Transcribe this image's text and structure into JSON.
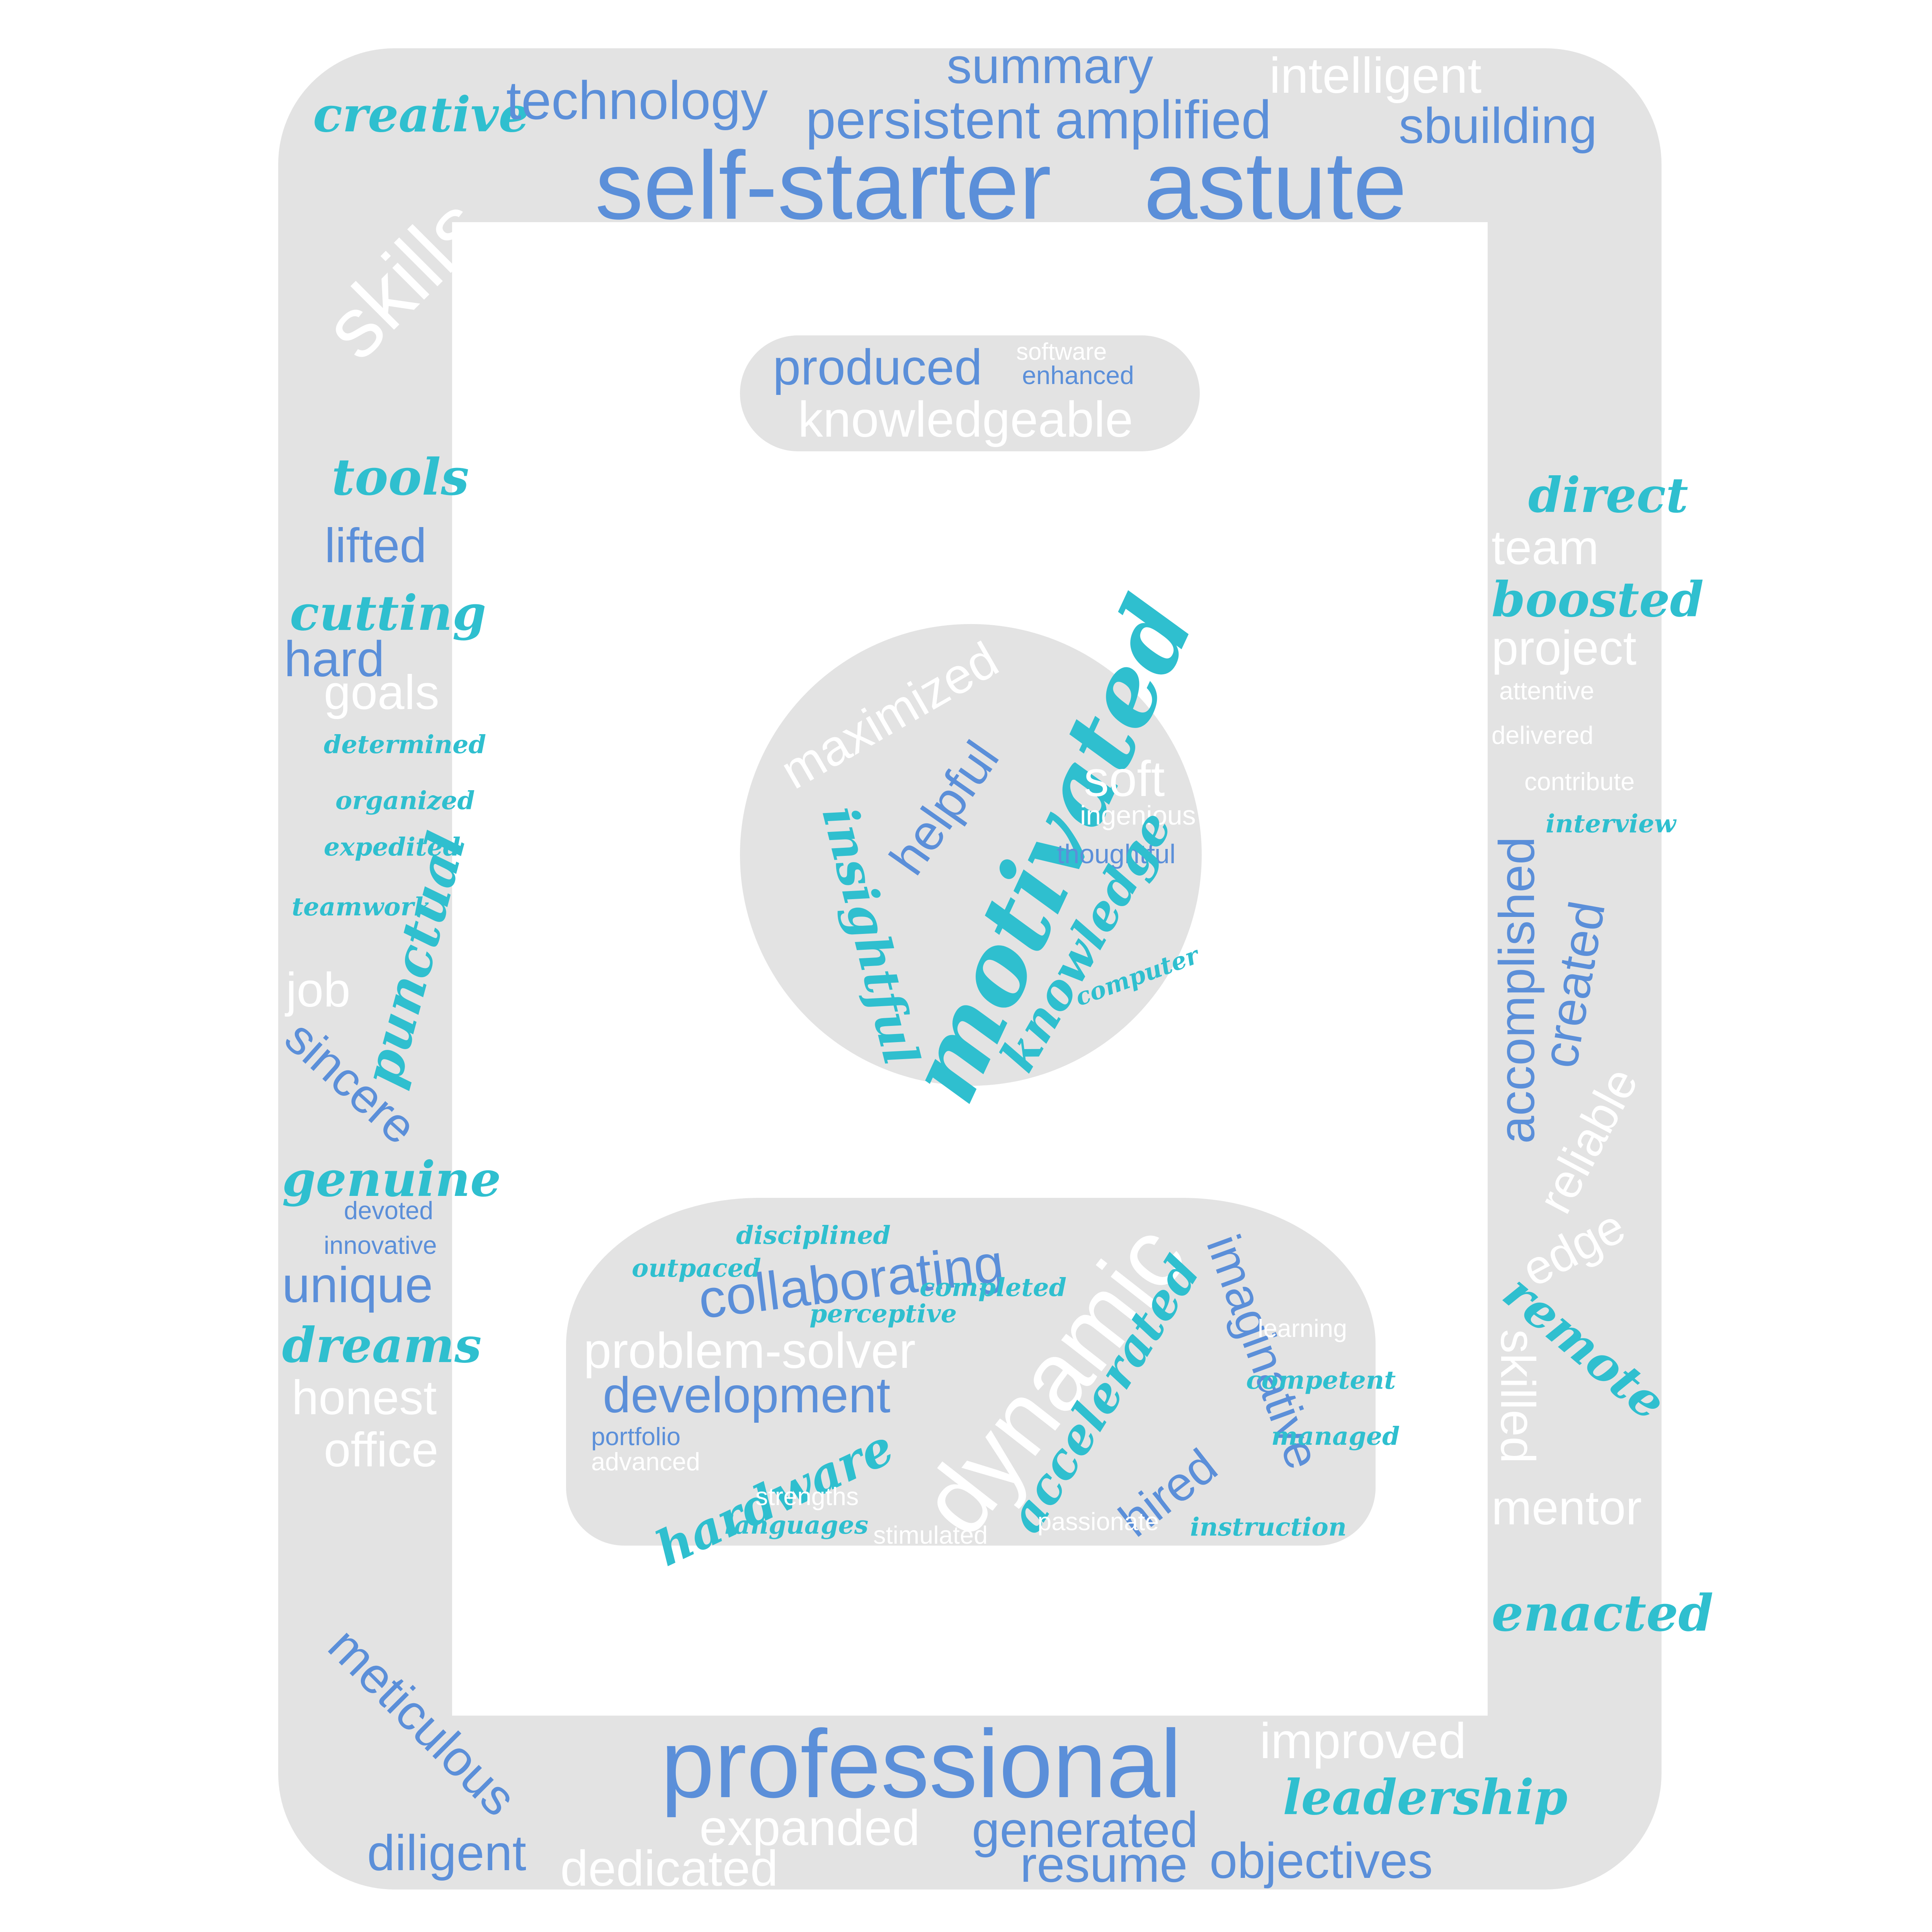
{
  "colors": {
    "blue": "#5b8fd9",
    "teal": "#2fbfcf",
    "white": "#ffffff",
    "shape_gray": "#e3e3e3",
    "background": "#ffffff"
  },
  "words": [
    {
      "id": "w1",
      "text": "creative",
      "color": "teal",
      "style": "script"
    },
    {
      "id": "w2",
      "text": "technology",
      "color": "blue",
      "style": "sans"
    },
    {
      "id": "w3",
      "text": "summary",
      "color": "blue",
      "style": "sans"
    },
    {
      "id": "w4",
      "text": "persistent",
      "color": "blue",
      "style": "sans"
    },
    {
      "id": "w5",
      "text": "amplified",
      "color": "blue",
      "style": "sans"
    },
    {
      "id": "w6",
      "text": "intelligent",
      "color": "white",
      "style": "sans"
    },
    {
      "id": "w7",
      "text": "sbuilding",
      "color": "blue",
      "style": "sans"
    },
    {
      "id": "w8",
      "text": "self-starter",
      "color": "blue",
      "style": "sans"
    },
    {
      "id": "w9",
      "text": "astute",
      "color": "blue",
      "style": "sans"
    },
    {
      "id": "w10",
      "text": "skills",
      "color": "white",
      "style": "sans"
    },
    {
      "id": "w11",
      "text": "produced",
      "color": "blue",
      "style": "sans"
    },
    {
      "id": "w12",
      "text": "software",
      "color": "white",
      "style": "sans"
    },
    {
      "id": "w13",
      "text": "enhanced",
      "color": "blue",
      "style": "sans"
    },
    {
      "id": "w14",
      "text": "knowledgeable",
      "color": "white",
      "style": "sans"
    },
    {
      "id": "w15",
      "text": "tools",
      "color": "teal",
      "style": "script"
    },
    {
      "id": "w16",
      "text": "lifted",
      "color": "blue",
      "style": "sans"
    },
    {
      "id": "w17",
      "text": "cutting",
      "color": "teal",
      "style": "script"
    },
    {
      "id": "w18",
      "text": "hard",
      "color": "blue",
      "style": "sans"
    },
    {
      "id": "w19",
      "text": "goals",
      "color": "white",
      "style": "sans"
    },
    {
      "id": "w20",
      "text": "determined",
      "color": "teal",
      "style": "script"
    },
    {
      "id": "w21",
      "text": "organized",
      "color": "teal",
      "style": "script"
    },
    {
      "id": "w22",
      "text": "expedited",
      "color": "teal",
      "style": "script"
    },
    {
      "id": "w23",
      "text": "teamwork",
      "color": "teal",
      "style": "script"
    },
    {
      "id": "w24",
      "text": "punctual",
      "color": "teal",
      "style": "script"
    },
    {
      "id": "w25",
      "text": "job",
      "color": "white",
      "style": "sans"
    },
    {
      "id": "w26",
      "text": "sincere",
      "color": "blue",
      "style": "sans"
    },
    {
      "id": "w27",
      "text": "genuine",
      "color": "teal",
      "style": "script"
    },
    {
      "id": "w28",
      "text": "devoted",
      "color": "blue",
      "style": "sans"
    },
    {
      "id": "w29",
      "text": "innovative",
      "color": "blue",
      "style": "sans"
    },
    {
      "id": "w30",
      "text": "unique",
      "color": "blue",
      "style": "sans"
    },
    {
      "id": "w31",
      "text": "dreams",
      "color": "teal",
      "style": "script"
    },
    {
      "id": "w32",
      "text": "honest",
      "color": "white",
      "style": "sans"
    },
    {
      "id": "w33",
      "text": "office",
      "color": "white",
      "style": "sans"
    },
    {
      "id": "w34",
      "text": "direct",
      "color": "teal",
      "style": "script"
    },
    {
      "id": "w35",
      "text": "team",
      "color": "white",
      "style": "sans"
    },
    {
      "id": "w36",
      "text": "boosted",
      "color": "teal",
      "style": "script"
    },
    {
      "id": "w37",
      "text": "project",
      "color": "white",
      "style": "sans"
    },
    {
      "id": "w38",
      "text": "attentive",
      "color": "white",
      "style": "sans"
    },
    {
      "id": "w39",
      "text": "delivered",
      "color": "white",
      "style": "sans"
    },
    {
      "id": "w40",
      "text": "contribute",
      "color": "white",
      "style": "sans"
    },
    {
      "id": "w41",
      "text": "interview",
      "color": "teal",
      "style": "script"
    },
    {
      "id": "w42",
      "text": "accomplished",
      "color": "blue",
      "style": "sans"
    },
    {
      "id": "w43",
      "text": "created",
      "color": "blue",
      "style": "sans"
    },
    {
      "id": "w44",
      "text": "reliable",
      "color": "white",
      "style": "sans"
    },
    {
      "id": "w45",
      "text": "edge",
      "color": "white",
      "style": "sans"
    },
    {
      "id": "w46",
      "text": "remote",
      "color": "teal",
      "style": "script"
    },
    {
      "id": "w47",
      "text": "skilled",
      "color": "white",
      "style": "sans"
    },
    {
      "id": "w48",
      "text": "mentor",
      "color": "white",
      "style": "sans"
    },
    {
      "id": "w49",
      "text": "enacted",
      "color": "teal",
      "style": "script"
    },
    {
      "id": "w50",
      "text": "maximized",
      "color": "white",
      "style": "sans"
    },
    {
      "id": "w51",
      "text": "helpful",
      "color": "blue",
      "style": "sans"
    },
    {
      "id": "w52",
      "text": "motivated",
      "color": "teal",
      "style": "script"
    },
    {
      "id": "w53",
      "text": "soft",
      "color": "white",
      "style": "sans"
    },
    {
      "id": "w54",
      "text": "ingenious",
      "color": "white",
      "style": "sans"
    },
    {
      "id": "w55",
      "text": "thoughtful",
      "color": "blue",
      "style": "sans"
    },
    {
      "id": "w56",
      "text": "insightful",
      "color": "teal",
      "style": "script"
    },
    {
      "id": "w57",
      "text": "knowledge",
      "color": "teal",
      "style": "script"
    },
    {
      "id": "w58",
      "text": "computer",
      "color": "teal",
      "style": "script"
    },
    {
      "id": "w59",
      "text": "disciplined",
      "color": "teal",
      "style": "script"
    },
    {
      "id": "w60",
      "text": "outpaced",
      "color": "teal",
      "style": "script"
    },
    {
      "id": "w61",
      "text": "collaborating",
      "color": "blue",
      "style": "sans"
    },
    {
      "id": "w62",
      "text": "completed",
      "color": "teal",
      "style": "script"
    },
    {
      "id": "w63",
      "text": "perceptive",
      "color": "teal",
      "style": "script"
    },
    {
      "id": "w64",
      "text": "dynamic",
      "color": "white",
      "style": "sans"
    },
    {
      "id": "w65",
      "text": "imaginative",
      "color": "blue",
      "style": "sans"
    },
    {
      "id": "w66",
      "text": "problem-solver",
      "color": "white",
      "style": "sans"
    },
    {
      "id": "w67",
      "text": "development",
      "color": "blue",
      "style": "sans"
    },
    {
      "id": "w68",
      "text": "learning",
      "color": "white",
      "style": "sans"
    },
    {
      "id": "w69",
      "text": "competent",
      "color": "teal",
      "style": "script"
    },
    {
      "id": "w70",
      "text": "portfolio",
      "color": "blue",
      "style": "sans"
    },
    {
      "id": "w71",
      "text": "advanced",
      "color": "white",
      "style": "sans"
    },
    {
      "id": "w72",
      "text": "hardware",
      "color": "teal",
      "style": "script"
    },
    {
      "id": "w73",
      "text": "accelerated",
      "color": "teal",
      "style": "script"
    },
    {
      "id": "w74",
      "text": "hired",
      "color": "blue",
      "style": "sans"
    },
    {
      "id": "w75",
      "text": "managed",
      "color": "teal",
      "style": "script"
    },
    {
      "id": "w76",
      "text": "strengths",
      "color": "white",
      "style": "sans"
    },
    {
      "id": "w77",
      "text": "languages",
      "color": "teal",
      "style": "script"
    },
    {
      "id": "w78",
      "text": "stimulated",
      "color": "white",
      "style": "sans"
    },
    {
      "id": "w79",
      "text": "passionate",
      "color": "white",
      "style": "sans"
    },
    {
      "id": "w80",
      "text": "instruction",
      "color": "teal",
      "style": "script"
    },
    {
      "id": "w81",
      "text": "meticulous",
      "color": "blue",
      "style": "sans"
    },
    {
      "id": "w82",
      "text": "professional",
      "color": "blue",
      "style": "sans"
    },
    {
      "id": "w83",
      "text": "improved",
      "color": "white",
      "style": "sans"
    },
    {
      "id": "w84",
      "text": "leadership",
      "color": "teal",
      "style": "script"
    },
    {
      "id": "w85",
      "text": "expanded",
      "color": "white",
      "style": "sans"
    },
    {
      "id": "w86",
      "text": "generated",
      "color": "blue",
      "style": "sans"
    },
    {
      "id": "w87",
      "text": "diligent",
      "color": "blue",
      "style": "sans"
    },
    {
      "id": "w88",
      "text": "dedicated",
      "color": "white",
      "style": "sans"
    },
    {
      "id": "w89",
      "text": "resume",
      "color": "blue",
      "style": "sans"
    },
    {
      "id": "w90",
      "text": "objectives",
      "color": "blue",
      "style": "sans"
    }
  ]
}
